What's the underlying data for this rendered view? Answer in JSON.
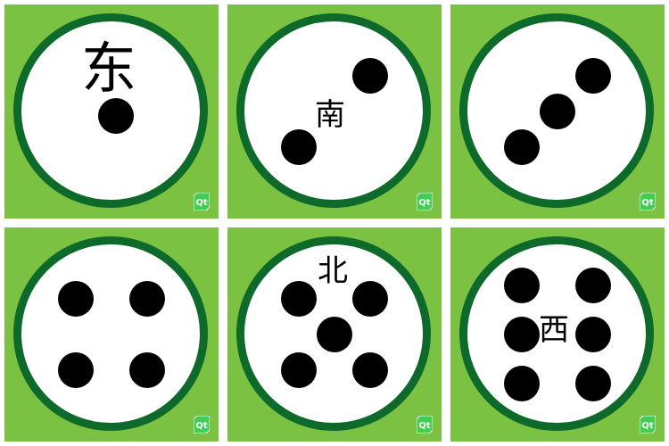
{
  "colors": {
    "tile_background": "#7cc242",
    "ring": "#0e6a2b",
    "face": "#ffffff",
    "pip": "#000000"
  },
  "logo_icon": "qt-logo-icon",
  "tiles": [
    {
      "id": "tile-1",
      "pips": 1,
      "label": "东"
    },
    {
      "id": "tile-2",
      "pips": 2,
      "label": "南"
    },
    {
      "id": "tile-3",
      "pips": 3,
      "label": ""
    },
    {
      "id": "tile-4",
      "pips": 4,
      "label": ""
    },
    {
      "id": "tile-5",
      "pips": 5,
      "label": "北"
    },
    {
      "id": "tile-6",
      "pips": 6,
      "label": "西"
    }
  ],
  "logo_text": "Qt"
}
